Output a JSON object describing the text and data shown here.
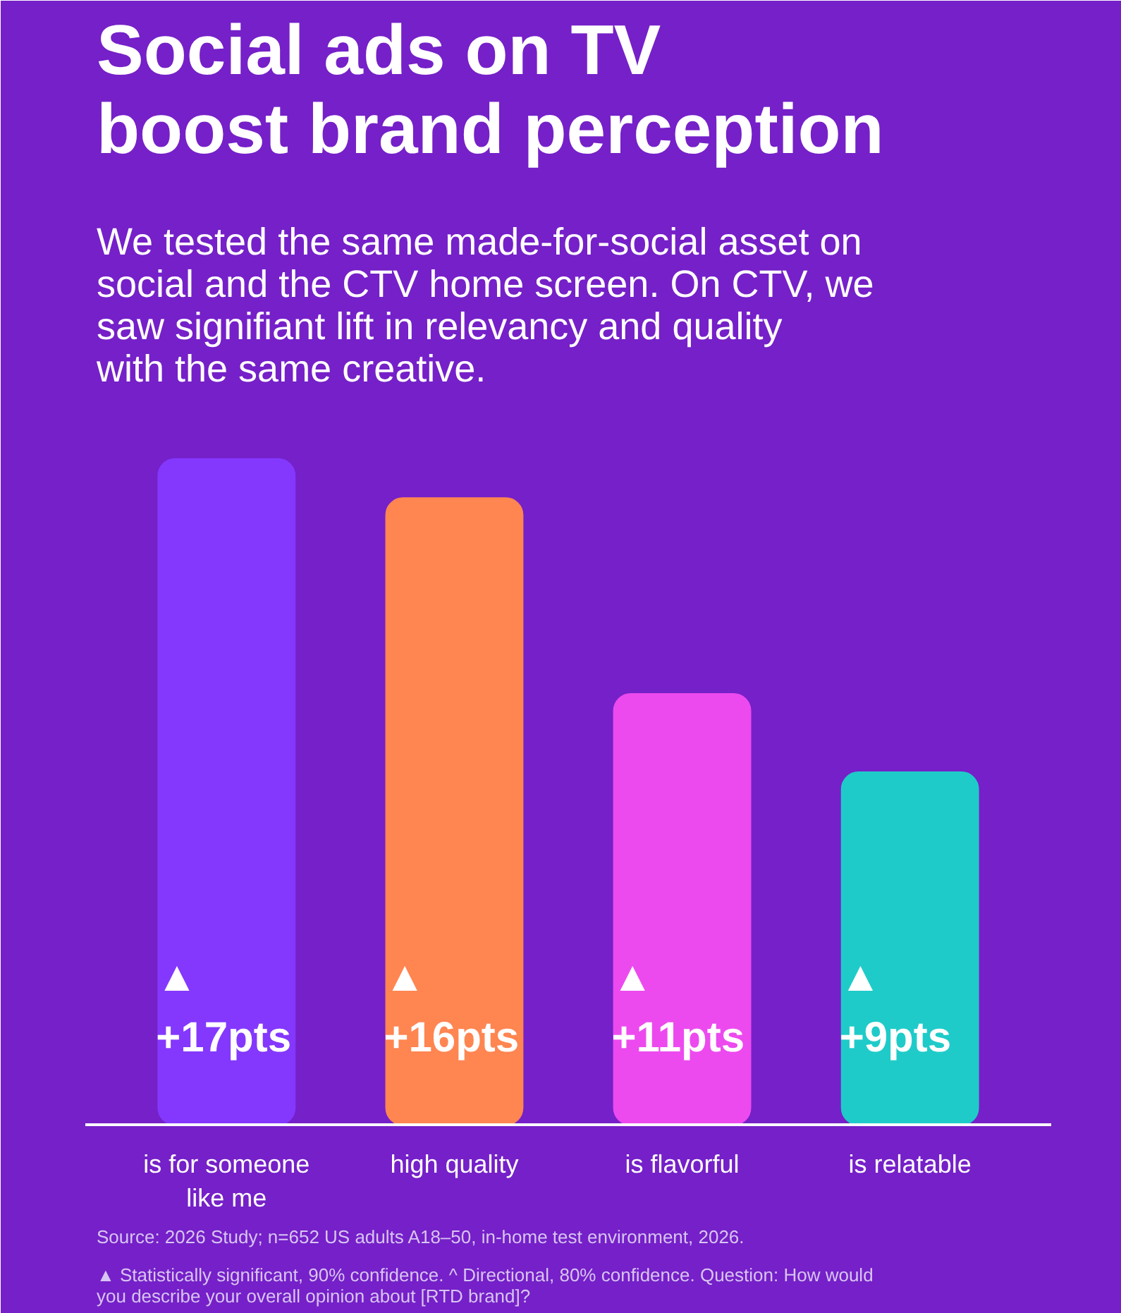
{
  "chart_data": {
    "type": "bar",
    "title": "Social ads on TV\nboost brand perception",
    "subtitle": "We tested the same made-for-social asset on social and the CTV home screen. On CTV, we saw signifiant lift in relevancy and quality with the same creative.",
    "categories": [
      "is for someone like me",
      "high quality",
      "is flavorful",
      "is relatable"
    ],
    "values": [
      17,
      16,
      11,
      9
    ],
    "colors": [
      "#8438fd",
      "#ff8551",
      "#ec4aee",
      "#1fcbc9"
    ],
    "value_labels": [
      "▲\n+17pts",
      "▲\n+16pts",
      "▲\n+11pts",
      "▲\n+9pts"
    ],
    "annotations": [
      "Source: 2026 Study; n=652 US adults A18–50, in-home test environment, 2026.",
      "▲ Statistically significant, 90% confidence. ^ Directional, 80% confidence. Question: How would you describe your overall opinion about [RTD brand]?"
    ],
    "grid": false
  }
}
